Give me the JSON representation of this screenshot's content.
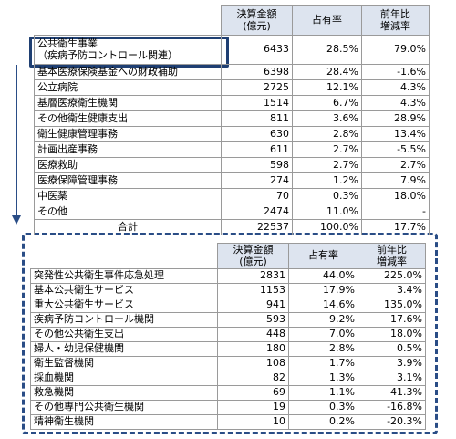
{
  "table1": {
    "headers": [
      "決算金額\n(億元)",
      "占有率",
      "前年比\n増減率"
    ],
    "rows": [
      {
        "name": "公共衛生事業\n（疾病予防コントロール関連）",
        "amount": "6433",
        "share": "28.5%",
        "yoy": "79.0%"
      },
      {
        "name": "基本医療保険基金への財政補助",
        "amount": "6398",
        "share": "28.4%",
        "yoy": "-1.6%"
      },
      {
        "name": "公立病院",
        "amount": "2725",
        "share": "12.1%",
        "yoy": "4.3%"
      },
      {
        "name": "基層医療衛生機関",
        "amount": "1514",
        "share": "6.7%",
        "yoy": "4.3%"
      },
      {
        "name": "その他衛生健康支出",
        "amount": "811",
        "share": "3.6%",
        "yoy": "28.9%"
      },
      {
        "name": "衛生健康管理事務",
        "amount": "630",
        "share": "2.8%",
        "yoy": "13.4%"
      },
      {
        "name": "計画出産事務",
        "amount": "611",
        "share": "2.7%",
        "yoy": "-5.5%"
      },
      {
        "name": "医療救助",
        "amount": "598",
        "share": "2.7%",
        "yoy": "2.7%"
      },
      {
        "name": "医療保障管理事務",
        "amount": "274",
        "share": "1.2%",
        "yoy": "7.9%"
      },
      {
        "name": "中医薬",
        "amount": "70",
        "share": "0.3%",
        "yoy": "18.0%"
      },
      {
        "name": "その他",
        "amount": "2474",
        "share": "11.0%",
        "yoy": "-"
      }
    ],
    "total": {
      "name": "合計",
      "amount": "22537",
      "share": "100.0%",
      "yoy": "17.7%"
    }
  },
  "table2": {
    "headers": [
      "決算金額\n(億元)",
      "占有率",
      "前年比\n増減率"
    ],
    "rows": [
      {
        "name": "突発性公共衛生事件応急処理",
        "amount": "2831",
        "share": "44.0%",
        "yoy": "225.0%"
      },
      {
        "name": "基本公共衛生サービス",
        "amount": "1153",
        "share": "17.9%",
        "yoy": "3.4%"
      },
      {
        "name": "重大公共衛生サービス",
        "amount": "941",
        "share": "14.6%",
        "yoy": "135.0%"
      },
      {
        "name": "疾病予防コントロール機関",
        "amount": "593",
        "share": "9.2%",
        "yoy": "17.6%"
      },
      {
        "name": "その他公共衛生支出",
        "amount": "448",
        "share": "7.0%",
        "yoy": "18.0%"
      },
      {
        "name": "婦人・幼児保健機関",
        "amount": "180",
        "share": "2.8%",
        "yoy": "0.5%"
      },
      {
        "name": "衛生監督機関",
        "amount": "108",
        "share": "1.7%",
        "yoy": "3.9%"
      },
      {
        "name": "採血機関",
        "amount": "82",
        "share": "1.3%",
        "yoy": "3.1%"
      },
      {
        "name": "救急機関",
        "amount": "69",
        "share": "1.1%",
        "yoy": "41.3%"
      },
      {
        "name": "その他専門公共衛生機関",
        "amount": "19",
        "share": "0.3%",
        "yoy": "-16.8%"
      },
      {
        "name": "精神衛生機関",
        "amount": "10",
        "share": "0.2%",
        "yoy": "-20.3%"
      }
    ]
  }
}
